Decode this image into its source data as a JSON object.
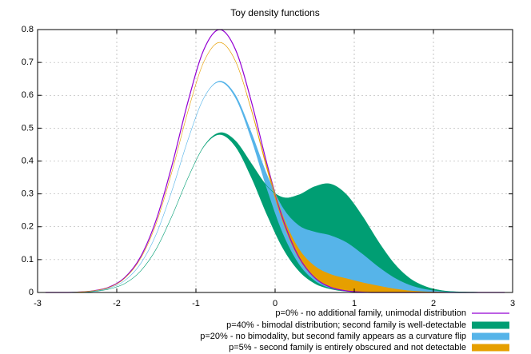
{
  "chart_data": {
    "type": "area",
    "title": "Toy density functions",
    "x": [
      -2.9,
      -2.7,
      -2.5,
      -2.3,
      -2.1,
      -1.9,
      -1.7,
      -1.5,
      -1.3,
      -1.1,
      -0.9,
      -0.7,
      -0.5,
      -0.3,
      -0.1,
      0.1,
      0.3,
      0.5,
      0.7,
      0.9,
      1.1,
      1.3,
      1.5,
      1.7,
      1.9,
      2.1,
      2.3,
      2.5,
      2.7,
      2.9
    ],
    "xlim": [
      -3,
      3
    ],
    "xticks": [
      -3,
      -2,
      -1,
      0,
      1,
      2,
      3
    ],
    "ylim": [
      0,
      0.8
    ],
    "yticks": [
      0,
      0.1,
      0.2,
      0.3,
      0.4,
      0.5,
      0.6,
      0.7,
      0.8
    ],
    "grid": true,
    "legend": "bottom-right",
    "series": [
      {
        "name": "p=0% - no additional family, unimodal distribution",
        "color": "#9400d3",
        "style": "line",
        "values": [
          0,
          0,
          0.001,
          0.005,
          0.016,
          0.045,
          0.108,
          0.222,
          0.389,
          0.581,
          0.739,
          0.8,
          0.739,
          0.581,
          0.389,
          0.222,
          0.108,
          0.045,
          0.016,
          0.005,
          0.001,
          0,
          0,
          0,
          0,
          0,
          0,
          0,
          0,
          0
        ]
      },
      {
        "name": "p=40% - bimodal distribution; second family is well-detectable",
        "color": "#009e73",
        "style": "band",
        "values": [
          0,
          0,
          0.001,
          0.003,
          0.01,
          0.027,
          0.065,
          0.133,
          0.234,
          0.349,
          0.445,
          0.486,
          0.461,
          0.392,
          0.323,
          0.289,
          0.297,
          0.322,
          0.33,
          0.298,
          0.233,
          0.156,
          0.089,
          0.043,
          0.018,
          0.006,
          0.002,
          0.001,
          0,
          0
        ],
        "lower": [
          0,
          0,
          0.001,
          0.003,
          0.01,
          0.027,
          0.065,
          0.133,
          0.234,
          0.349,
          0.443,
          0.48,
          0.443,
          0.349,
          0.234,
          0.133,
          0.065,
          0.027,
          0.01,
          0.003,
          0.001,
          0,
          0,
          0,
          0,
          0,
          0,
          0,
          0,
          0
        ]
      },
      {
        "name": "p=20% - no bimodality, but second family appears as a curvature flip",
        "color": "#56b4e9",
        "style": "band",
        "values": [
          0,
          0,
          0.001,
          0.004,
          0.013,
          0.036,
          0.087,
          0.178,
          0.312,
          0.465,
          0.592,
          0.643,
          0.6,
          0.486,
          0.356,
          0.256,
          0.203,
          0.184,
          0.173,
          0.152,
          0.117,
          0.078,
          0.045,
          0.022,
          0.009,
          0.003,
          0.001,
          0,
          0,
          0
        ],
        "lower": [
          0,
          0,
          0.001,
          0.004,
          0.013,
          0.036,
          0.087,
          0.178,
          0.312,
          0.465,
          0.591,
          0.64,
          0.591,
          0.465,
          0.312,
          0.178,
          0.087,
          0.036,
          0.013,
          0.004,
          0.001,
          0,
          0,
          0,
          0,
          0,
          0,
          0,
          0,
          0
        ]
      },
      {
        "name": "p=5% - second family is entirely obscured and not detectable",
        "color": "#e69f00",
        "style": "band",
        "values": [
          0,
          0,
          0.001,
          0.005,
          0.015,
          0.043,
          0.103,
          0.211,
          0.37,
          0.552,
          0.702,
          0.761,
          0.704,
          0.557,
          0.381,
          0.231,
          0.132,
          0.08,
          0.055,
          0.042,
          0.03,
          0.02,
          0.011,
          0.005,
          0.002,
          0.001,
          0,
          0,
          0,
          0
        ],
        "lower": [
          0,
          0,
          0.001,
          0.005,
          0.015,
          0.043,
          0.103,
          0.211,
          0.37,
          0.552,
          0.702,
          0.76,
          0.702,
          0.552,
          0.37,
          0.211,
          0.103,
          0.043,
          0.015,
          0.005,
          0.001,
          0,
          0,
          0,
          0,
          0,
          0,
          0,
          0,
          0
        ]
      }
    ]
  }
}
